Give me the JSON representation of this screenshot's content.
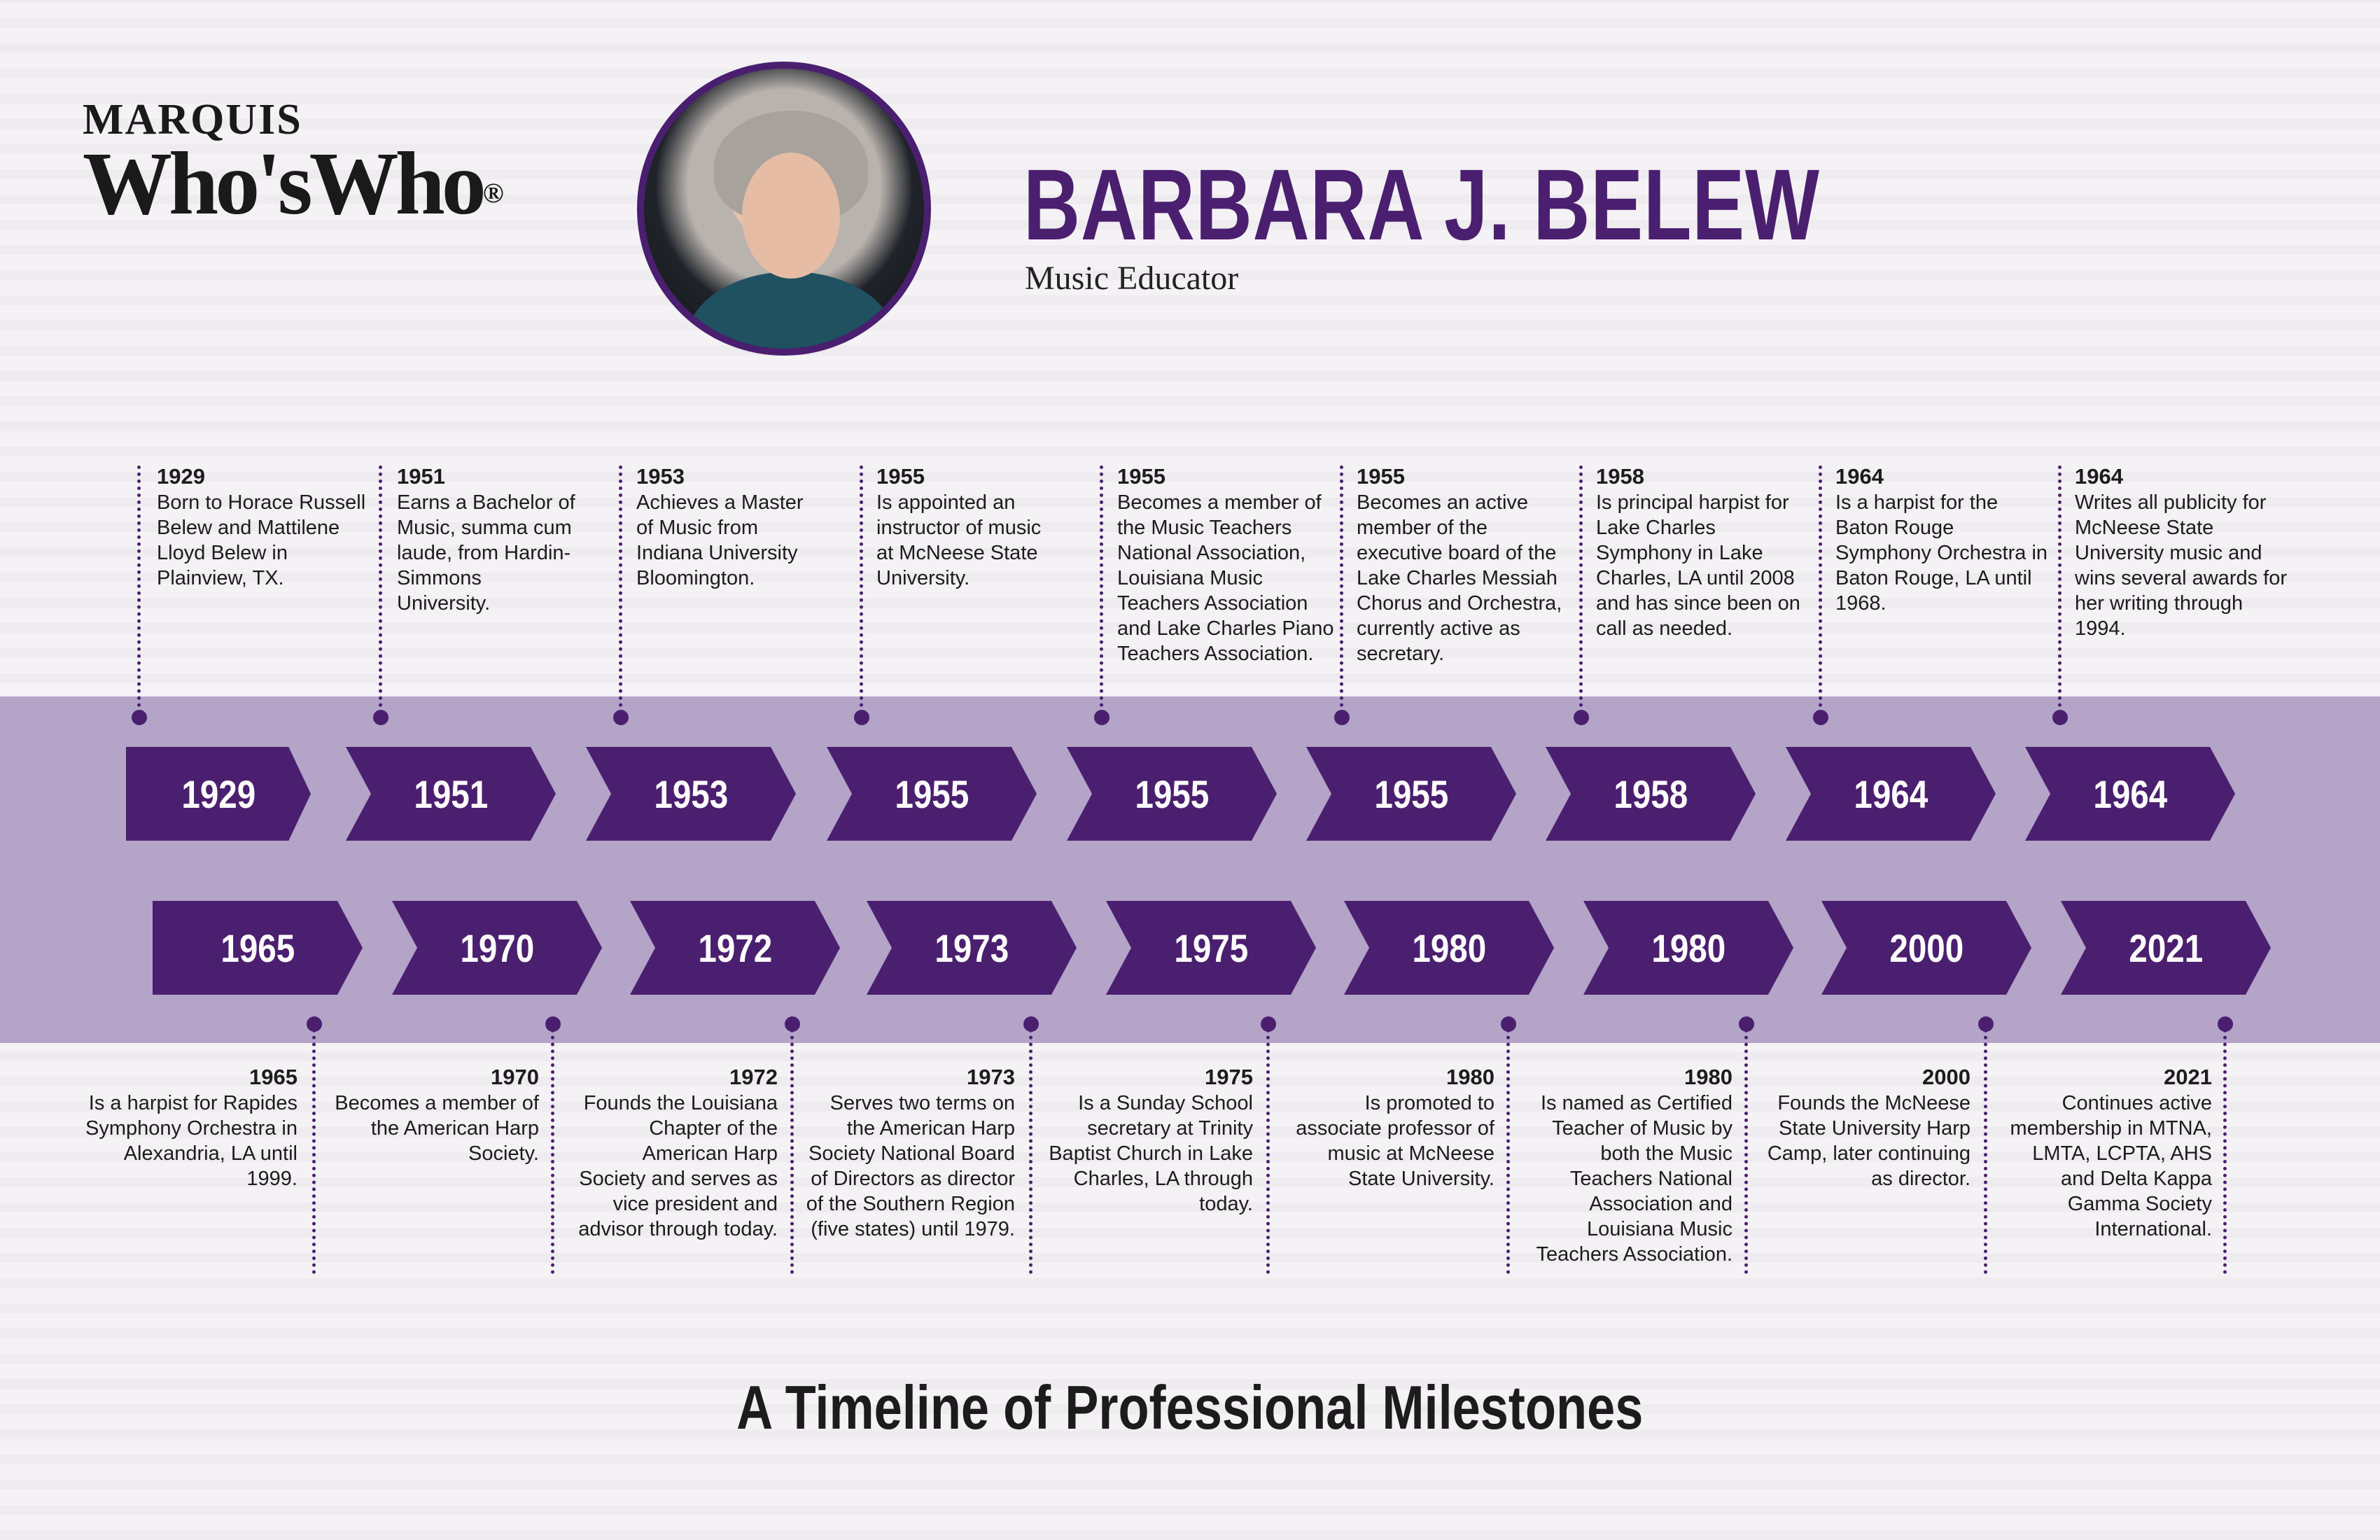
{
  "logo": {
    "line1": "MARQUIS",
    "line2": "Who'sWho",
    "registered": "®"
  },
  "profile": {
    "name": "BARBARA J. BELEW",
    "role": "Music Educator"
  },
  "top_events": [
    {
      "year": "1929",
      "text": "Born to Horace Russell Belew and Mattilene Lloyd Belew in Plainview, TX."
    },
    {
      "year": "1951",
      "text": "Earns a Bachelor of Music, summa cum laude, from Hardin-Simmons University."
    },
    {
      "year": "1953",
      "text": "Achieves a Master of Music from Indiana University Bloomington."
    },
    {
      "year": "1955",
      "text": "Is appointed an instructor of music at McNeese State University."
    },
    {
      "year": "1955",
      "text": "Becomes a member of the Music Teachers National Association, Louisiana Music Teachers Association and Lake Charles Piano Teachers Association."
    },
    {
      "year": "1955",
      "text": "Becomes an active member of the executive board of the Lake Charles Messiah Chorus and Orchestra, currently active as secretary."
    },
    {
      "year": "1958",
      "text": "Is principal harpist for Lake Charles Symphony in Lake Charles, LA until 2008 and has since been on call as needed."
    },
    {
      "year": "1964",
      "text": "Is a harpist for the Baton Rouge Symphony Orchestra in Baton Rouge, LA until 1968."
    },
    {
      "year": "1964",
      "text": "Writes all publicity for McNeese State University music and wins several awards for her writing through 1994."
    }
  ],
  "bottom_events": [
    {
      "year": "1965",
      "text": "Is a harpist for Rapides Symphony Orchestra in Alexandria, LA until 1999."
    },
    {
      "year": "1970",
      "text": "Becomes a member of the American Harp Society."
    },
    {
      "year": "1972",
      "text": "Founds the Louisiana Chapter of the American Harp Society and serves as vice president and advisor through today."
    },
    {
      "year": "1973",
      "text": "Serves two terms on the American Harp Society National Board of Directors as director of the Southern Region (five states) until 1979."
    },
    {
      "year": "1975",
      "text": "Is a Sunday School secretary at Trinity Baptist Church in Lake Charles, LA through today."
    },
    {
      "year": "1980",
      "text": "Is promoted to associate professor of music at McNeese State University."
    },
    {
      "year": "1980",
      "text": "Is named as Certified Teacher of Music by both the Music Teachers National Association and Louisiana Music Teachers Association."
    },
    {
      "year": "2000",
      "text": "Founds the McNeese State University Harp Camp, later continuing as director."
    },
    {
      "year": "2021",
      "text": "Continues active membership in MTNA, LMTA, LCPTA, AHS and Delta Kappa Gamma Society International."
    }
  ],
  "footer": {
    "title": "A Timeline of Professional Milestones"
  },
  "colors": {
    "accent": "#4b1f6f",
    "band": "#b3a4c8",
    "background": "#f4f2f4"
  }
}
